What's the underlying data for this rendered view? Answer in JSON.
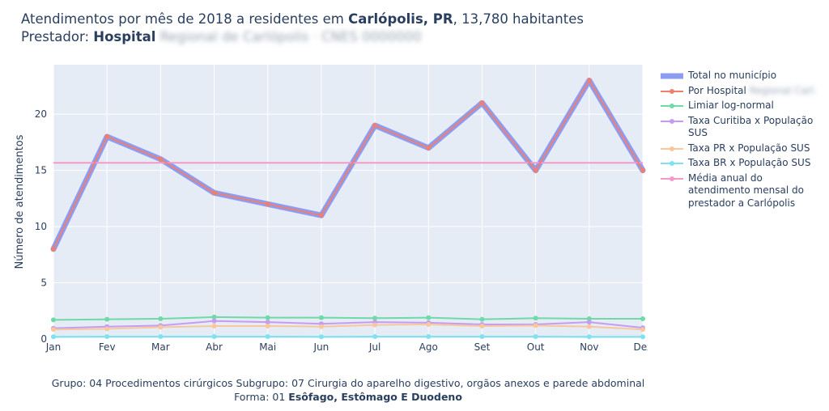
{
  "header": {
    "title_prefix": "Atendimentos por mês de 2018 a residentes em ",
    "title_city": "Carlópolis, PR",
    "title_suffix": ", 13,780 habitantes",
    "provider_prefix": "Prestador: ",
    "provider_name": "Hospital",
    "provider_redacted": "Regional de Carlópolis · CNES 0000000"
  },
  "footer": {
    "line1": "Grupo: 04 Procedimentos cirúrgicos Subgrupo: 07 Cirurgia do aparelho digestivo, orgãos anexos e parede abdominal",
    "line2_prefix": "Forma: 01 ",
    "line2_bold": "Esôfago, Estômago E Duodeno"
  },
  "chart_data": {
    "type": "line",
    "ylabel": "Número de atendimentos",
    "xlabel": "",
    "categories": [
      "Jan",
      "Fev",
      "Mar",
      "Abr",
      "Mai",
      "Jun",
      "Jul",
      "Ago",
      "Set",
      "Out",
      "Nov",
      "Dez"
    ],
    "ylim": [
      0,
      24.4
    ],
    "yticks": [
      0,
      5,
      10,
      15,
      20
    ],
    "grid": true,
    "legend_position": "right",
    "series": [
      {
        "name": "Total no município",
        "color": "#8c9cf2",
        "style": "thick",
        "values": [
          8,
          18,
          16,
          13,
          12,
          11,
          19,
          17,
          21,
          15,
          23,
          15
        ]
      },
      {
        "name": "Por Hospital",
        "name_redacted": "Regional Carl.",
        "color": "#ef7f6f",
        "style": "markers",
        "values": [
          8,
          18,
          16,
          13,
          12,
          11,
          19,
          17,
          21,
          15,
          23,
          15
        ]
      },
      {
        "name": "Limiar log-normal",
        "color": "#6fd9a8",
        "style": "markers",
        "values": [
          1.7,
          1.75,
          1.8,
          1.95,
          1.9,
          1.9,
          1.85,
          1.9,
          1.75,
          1.85,
          1.8,
          1.8
        ]
      },
      {
        "name": "Taxa Curitiba x População SUS",
        "color": "#c59cf2",
        "style": "markers",
        "values": [
          0.95,
          1.1,
          1.2,
          1.6,
          1.5,
          1.35,
          1.5,
          1.45,
          1.3,
          1.3,
          1.5,
          1.0
        ]
      },
      {
        "name": "Taxa PR x População SUS",
        "color": "#f9c79c",
        "style": "markers",
        "values": [
          0.85,
          0.9,
          1.05,
          1.15,
          1.15,
          1.1,
          1.25,
          1.3,
          1.15,
          1.2,
          1.1,
          0.85
        ]
      },
      {
        "name": "Taxa BR x População SUS",
        "color": "#7fe2f0",
        "style": "markers",
        "values": [
          0.2,
          0.22,
          0.22,
          0.22,
          0.22,
          0.2,
          0.22,
          0.22,
          0.22,
          0.22,
          0.2,
          0.2
        ]
      },
      {
        "name": "Média anual do atendimento mensal do prestador a Carlópolis",
        "color": "#f49ac8",
        "style": "hline",
        "value": 15.67
      }
    ]
  }
}
